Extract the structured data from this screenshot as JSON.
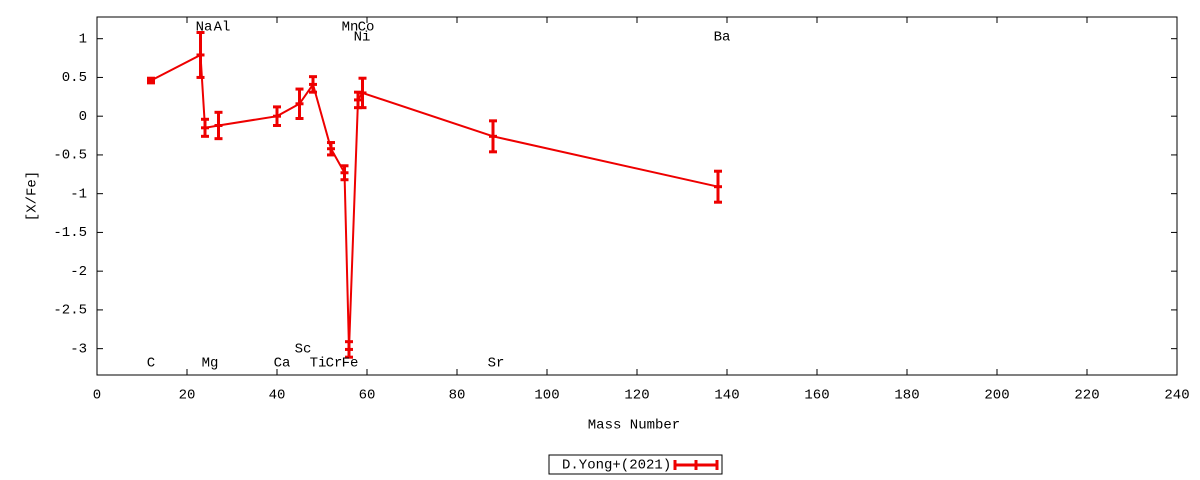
{
  "chart_data": {
    "type": "line",
    "x_label": "Mass Number",
    "y_label": "[X/Fe]",
    "xlim": [
      0,
      240
    ],
    "xticks": [
      0,
      20,
      40,
      60,
      80,
      100,
      120,
      140,
      160,
      180,
      200,
      220,
      240
    ],
    "ylim": [
      -3.34,
      1.28
    ],
    "yticks": [
      1,
      0.5,
      0,
      -0.5,
      -1,
      -1.5,
      -2,
      -2.5,
      -3
    ],
    "legend": "bottom",
    "series": [
      {
        "name": "D.Yong+(2021)",
        "color": "#ee0000",
        "labels": [
          "C",
          "Na",
          "Mg",
          "Al",
          "Ca",
          "Sc",
          "Ti",
          "Cr",
          "Mn",
          "Fe",
          "Ni",
          "Co",
          "Sr",
          "Ba"
        ],
        "x": [
          12,
          23,
          24,
          27,
          40,
          45,
          48,
          52,
          55,
          56,
          58,
          59,
          88,
          138
        ],
        "values": [
          0.46,
          0.79,
          -0.15,
          -0.12,
          0.0,
          0.16,
          0.41,
          -0.42,
          -0.73,
          -3.01,
          0.21,
          0.3,
          -0.26,
          -0.91
        ],
        "errors": [
          0.03,
          0.29,
          0.11,
          0.17,
          0.12,
          0.19,
          0.1,
          0.08,
          0.09,
          0.1,
          0.1,
          0.19,
          0.2,
          0.2
        ]
      }
    ]
  }
}
